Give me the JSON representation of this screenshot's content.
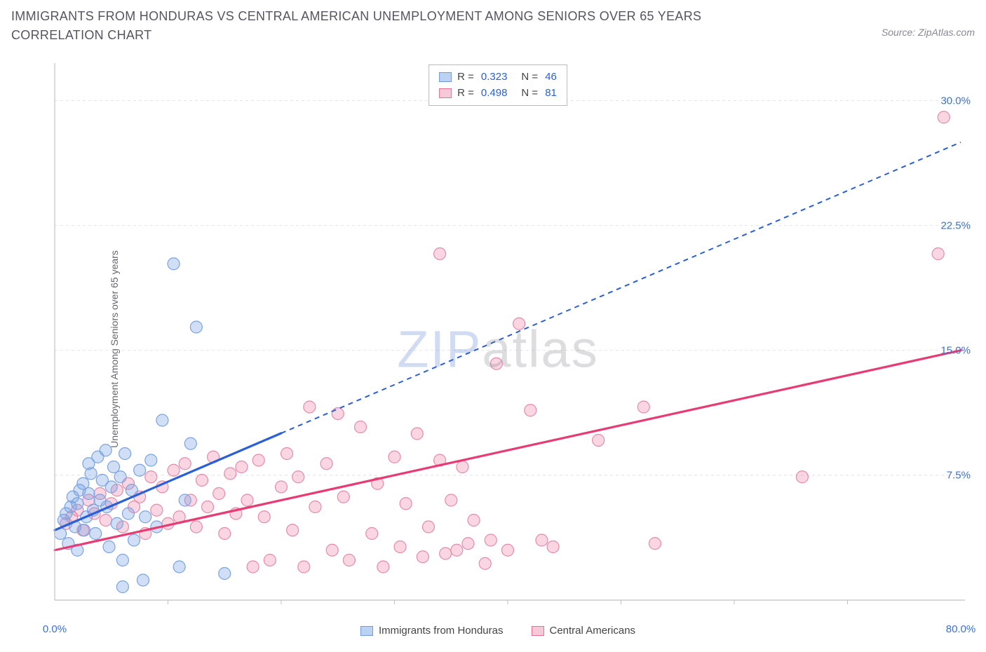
{
  "title": "IMMIGRANTS FROM HONDURAS VS CENTRAL AMERICAN UNEMPLOYMENT AMONG SENIORS OVER 65 YEARS CORRELATION CHART",
  "source": "Source: ZipAtlas.com",
  "ylabel": "Unemployment Among Seniors over 65 years",
  "watermark_a": "ZIP",
  "watermark_b": "atlas",
  "chart": {
    "type": "scatter",
    "xlim": [
      0,
      80
    ],
    "ylim": [
      0,
      32
    ],
    "x_ticks": [
      0,
      80
    ],
    "x_tick_labels": [
      "0.0%",
      "80.0%"
    ],
    "x_minor_ticks": [
      10,
      20,
      30,
      40,
      50,
      60,
      70
    ],
    "y_ticks": [
      7.5,
      15.0,
      22.5,
      30.0
    ],
    "y_tick_labels": [
      "7.5%",
      "15.0%",
      "22.5%",
      "30.0%"
    ],
    "background_color": "#ffffff",
    "grid_color": "#e2e2e8",
    "axis_color": "#c0c0c8",
    "series": [
      {
        "name": "Immigrants from Honduras",
        "color_fill": "rgba(120,160,230,0.35)",
        "color_stroke": "#7aa3e0",
        "swatch_fill": "#bcd2f2",
        "swatch_border": "#6f9be0",
        "R": "0.323",
        "N": "46",
        "trend": {
          "x1": 0,
          "y1": 4.2,
          "x2": 80,
          "y2": 27.5,
          "solid_until_x": 20,
          "color": "#2a5fd8"
        },
        "points": [
          [
            0.5,
            4.0
          ],
          [
            0.8,
            4.8
          ],
          [
            1.0,
            5.2
          ],
          [
            1.2,
            3.4
          ],
          [
            1.4,
            5.6
          ],
          [
            1.6,
            6.2
          ],
          [
            1.8,
            4.4
          ],
          [
            2.0,
            5.8
          ],
          [
            2.2,
            6.6
          ],
          [
            2.0,
            3.0
          ],
          [
            2.5,
            7.0
          ],
          [
            2.6,
            4.2
          ],
          [
            2.8,
            5.0
          ],
          [
            3.0,
            6.4
          ],
          [
            3.0,
            8.2
          ],
          [
            3.2,
            7.6
          ],
          [
            3.4,
            5.4
          ],
          [
            3.6,
            4.0
          ],
          [
            3.8,
            8.6
          ],
          [
            4.0,
            6.0
          ],
          [
            4.2,
            7.2
          ],
          [
            4.5,
            9.0
          ],
          [
            4.6,
            5.6
          ],
          [
            4.8,
            3.2
          ],
          [
            5.0,
            6.8
          ],
          [
            5.2,
            8.0
          ],
          [
            5.5,
            4.6
          ],
          [
            5.8,
            7.4
          ],
          [
            6.0,
            2.4
          ],
          [
            6.2,
            8.8
          ],
          [
            6.5,
            5.2
          ],
          [
            6.8,
            6.6
          ],
          [
            7.0,
            3.6
          ],
          [
            7.5,
            7.8
          ],
          [
            7.8,
            1.2
          ],
          [
            8.0,
            5.0
          ],
          [
            8.5,
            8.4
          ],
          [
            9.0,
            4.4
          ],
          [
            9.5,
            10.8
          ],
          [
            10.5,
            20.2
          ],
          [
            11.0,
            2.0
          ],
          [
            11.5,
            6.0
          ],
          [
            12.0,
            9.4
          ],
          [
            12.5,
            16.4
          ],
          [
            15.0,
            1.6
          ],
          [
            6.0,
            0.8
          ]
        ]
      },
      {
        "name": "Central Americans",
        "color_fill": "rgba(235,120,160,0.30)",
        "color_stroke": "#e48aab",
        "swatch_fill": "#f6c9d8",
        "swatch_border": "#e46f98",
        "R": "0.498",
        "N": "81",
        "trend": {
          "x1": 0,
          "y1": 3.0,
          "x2": 80,
          "y2": 15.0,
          "solid_until_x": 80,
          "color": "#e83b74"
        },
        "points": [
          [
            1.0,
            4.6
          ],
          [
            1.5,
            5.0
          ],
          [
            2.0,
            5.4
          ],
          [
            2.5,
            4.2
          ],
          [
            3.0,
            6.0
          ],
          [
            3.5,
            5.2
          ],
          [
            4.0,
            6.4
          ],
          [
            4.5,
            4.8
          ],
          [
            5.0,
            5.8
          ],
          [
            5.5,
            6.6
          ],
          [
            6.0,
            4.4
          ],
          [
            6.5,
            7.0
          ],
          [
            7.0,
            5.6
          ],
          [
            7.5,
            6.2
          ],
          [
            8.0,
            4.0
          ],
          [
            8.5,
            7.4
          ],
          [
            9.0,
            5.4
          ],
          [
            9.5,
            6.8
          ],
          [
            10.0,
            4.6
          ],
          [
            10.5,
            7.8
          ],
          [
            11.0,
            5.0
          ],
          [
            11.5,
            8.2
          ],
          [
            12.0,
            6.0
          ],
          [
            12.5,
            4.4
          ],
          [
            13.0,
            7.2
          ],
          [
            13.5,
            5.6
          ],
          [
            14.0,
            8.6
          ],
          [
            14.5,
            6.4
          ],
          [
            15.0,
            4.0
          ],
          [
            15.5,
            7.6
          ],
          [
            16.0,
            5.2
          ],
          [
            16.5,
            8.0
          ],
          [
            17.0,
            6.0
          ],
          [
            17.5,
            2.0
          ],
          [
            18.0,
            8.4
          ],
          [
            18.5,
            5.0
          ],
          [
            19.0,
            2.4
          ],
          [
            20.0,
            6.8
          ],
          [
            20.5,
            8.8
          ],
          [
            21.0,
            4.2
          ],
          [
            21.5,
            7.4
          ],
          [
            22.0,
            2.0
          ],
          [
            22.5,
            11.6
          ],
          [
            23.0,
            5.6
          ],
          [
            24.0,
            8.2
          ],
          [
            24.5,
            3.0
          ],
          [
            25.0,
            11.2
          ],
          [
            25.5,
            6.2
          ],
          [
            26.0,
            2.4
          ],
          [
            27.0,
            10.4
          ],
          [
            28.0,
            4.0
          ],
          [
            28.5,
            7.0
          ],
          [
            29.0,
            2.0
          ],
          [
            30.0,
            8.6
          ],
          [
            30.5,
            3.2
          ],
          [
            31.0,
            5.8
          ],
          [
            32.0,
            10.0
          ],
          [
            32.5,
            2.6
          ],
          [
            33.0,
            4.4
          ],
          [
            34.0,
            20.8
          ],
          [
            34.5,
            2.8
          ],
          [
            35.0,
            6.0
          ],
          [
            35.5,
            3.0
          ],
          [
            36.0,
            8.0
          ],
          [
            36.5,
            3.4
          ],
          [
            37.0,
            4.8
          ],
          [
            38.0,
            2.2
          ],
          [
            38.5,
            3.6
          ],
          [
            39.0,
            14.2
          ],
          [
            40.0,
            3.0
          ],
          [
            41.0,
            16.6
          ],
          [
            42.0,
            11.4
          ],
          [
            43.0,
            3.6
          ],
          [
            44.0,
            3.2
          ],
          [
            48.0,
            9.6
          ],
          [
            52.0,
            11.6
          ],
          [
            53.0,
            3.4
          ],
          [
            66.0,
            7.4
          ],
          [
            78.5,
            29.0
          ],
          [
            78.0,
            20.8
          ],
          [
            34.0,
            8.4
          ]
        ]
      }
    ]
  },
  "bottom_legend": [
    {
      "label": "Immigrants from Honduras",
      "fill": "#bcd2f2",
      "border": "#6f9be0"
    },
    {
      "label": "Central Americans",
      "fill": "#f6c9d8",
      "border": "#e46f98"
    }
  ]
}
